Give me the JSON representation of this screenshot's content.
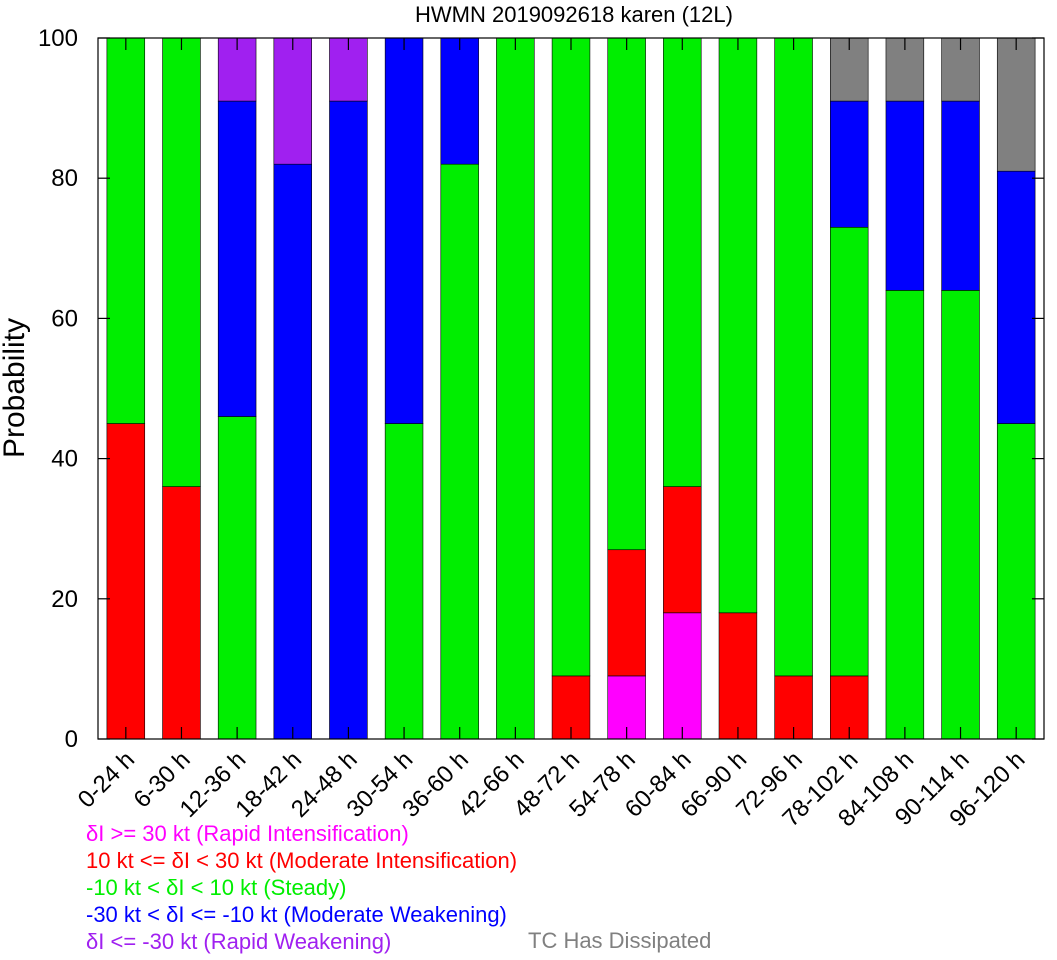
{
  "chart_data": {
    "type": "bar",
    "stacked": true,
    "title": "HWMN 2019092618 karen (12L)",
    "xlabel": "",
    "ylabel": "Probability",
    "ylim": [
      0,
      100
    ],
    "yticks": [
      "0",
      "20",
      "40",
      "60",
      "80",
      "100"
    ],
    "categories": [
      "0-24 h",
      "6-30 h",
      "12-36 h",
      "18-42 h",
      "24-48 h",
      "30-54 h",
      "36-60 h",
      "42-66 h",
      "48-72 h",
      "54-78 h",
      "60-84 h",
      "66-90 h",
      "72-96 h",
      "78-102 h",
      "84-108 h",
      "90-114 h",
      "96-120 h"
    ],
    "series": [
      {
        "key": "ri",
        "color": "#ff00ff",
        "values": [
          0,
          0,
          0,
          0,
          0,
          0,
          0,
          0,
          0,
          9,
          18,
          0,
          0,
          0,
          0,
          0,
          0
        ]
      },
      {
        "key": "mi",
        "color": "#ff0000",
        "values": [
          45,
          36,
          0,
          0,
          0,
          0,
          0,
          0,
          9,
          18,
          18,
          18,
          9,
          9,
          0,
          0,
          0
        ]
      },
      {
        "key": "st",
        "color": "#00ee00",
        "values": [
          55,
          64,
          46,
          0,
          0,
          45,
          82,
          100,
          91,
          73,
          64,
          82,
          91,
          64,
          64,
          64,
          45
        ]
      },
      {
        "key": "mw",
        "color": "#0000ff",
        "values": [
          0,
          0,
          45,
          82,
          91,
          55,
          18,
          0,
          0,
          0,
          0,
          0,
          0,
          18,
          27,
          27,
          36
        ]
      },
      {
        "key": "rw",
        "color": "#a020f0",
        "values": [
          0,
          0,
          9,
          18,
          9,
          0,
          0,
          0,
          0,
          0,
          0,
          0,
          0,
          0,
          0,
          0,
          0
        ]
      },
      {
        "key": "td",
        "color": "#808080",
        "values": [
          0,
          0,
          0,
          0,
          0,
          0,
          0,
          0,
          0,
          0,
          0,
          0,
          0,
          9,
          9,
          9,
          19
        ]
      }
    ],
    "legend": [
      {
        "text": "δI >= 30 kt (Rapid Intensification)",
        "color": "#ff00ff"
      },
      {
        "text": "10 kt <= δI < 30 kt (Moderate Intensification)",
        "color": "#ff0000"
      },
      {
        "text": "-10 kt < δI < 10 kt (Steady)",
        "color": "#00ee00"
      },
      {
        "text": "-30 kt < δI <= -10 kt (Moderate Weakening)",
        "color": "#0000ff"
      },
      {
        "text": "δI <= -30 kt (Rapid Weakening)",
        "color": "#a020f0"
      }
    ],
    "dissipated_legend": {
      "text": "TC Has Dissipated",
      "color": "#808080"
    }
  }
}
